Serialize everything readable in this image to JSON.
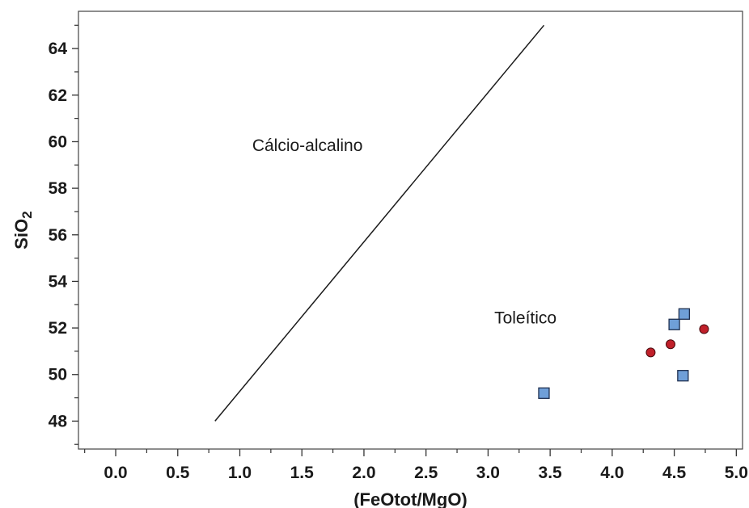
{
  "chart_data": {
    "type": "scatter",
    "xlabel": "(FeOtot/MgO)",
    "ylabel_main": "SiO",
    "ylabel_sub": "2",
    "xlim": [
      -0.3,
      5.05
    ],
    "ylim": [
      46.8,
      65.6
    ],
    "x_ticks": [
      0.0,
      0.5,
      1.0,
      1.5,
      2.0,
      2.5,
      3.0,
      3.5,
      4.0,
      4.5,
      5.0
    ],
    "x_tick_labels": [
      "0.0",
      "0.5",
      "1.0",
      "1.5",
      "2.0",
      "2.5",
      "3.0",
      "3.5",
      "4.0",
      "4.5",
      "5.0"
    ],
    "y_ticks": [
      48,
      50,
      52,
      54,
      56,
      58,
      60,
      62,
      64
    ],
    "y_tick_labels": [
      "48",
      "50",
      "52",
      "54",
      "56",
      "58",
      "60",
      "62",
      "64"
    ],
    "boundary_line": {
      "x": [
        0.8,
        3.45
      ],
      "y": [
        48,
        65
      ]
    },
    "regions": [
      {
        "label": "Cálcio-alcalino",
        "x": 1.1,
        "y": 59.6
      },
      {
        "label": "Toleítico",
        "x": 3.05,
        "y": 52.2
      }
    ],
    "series": [
      {
        "marker": "square",
        "color": "#6f9fd8",
        "points": [
          [
            3.45,
            49.2
          ],
          [
            4.5,
            52.15
          ],
          [
            4.58,
            52.6
          ],
          [
            4.57,
            49.95
          ]
        ]
      },
      {
        "marker": "circle",
        "color": "#c0202a",
        "points": [
          [
            4.31,
            50.95
          ],
          [
            4.47,
            51.3
          ],
          [
            4.74,
            51.95
          ]
        ]
      }
    ],
    "grid": false,
    "legend": "none"
  }
}
